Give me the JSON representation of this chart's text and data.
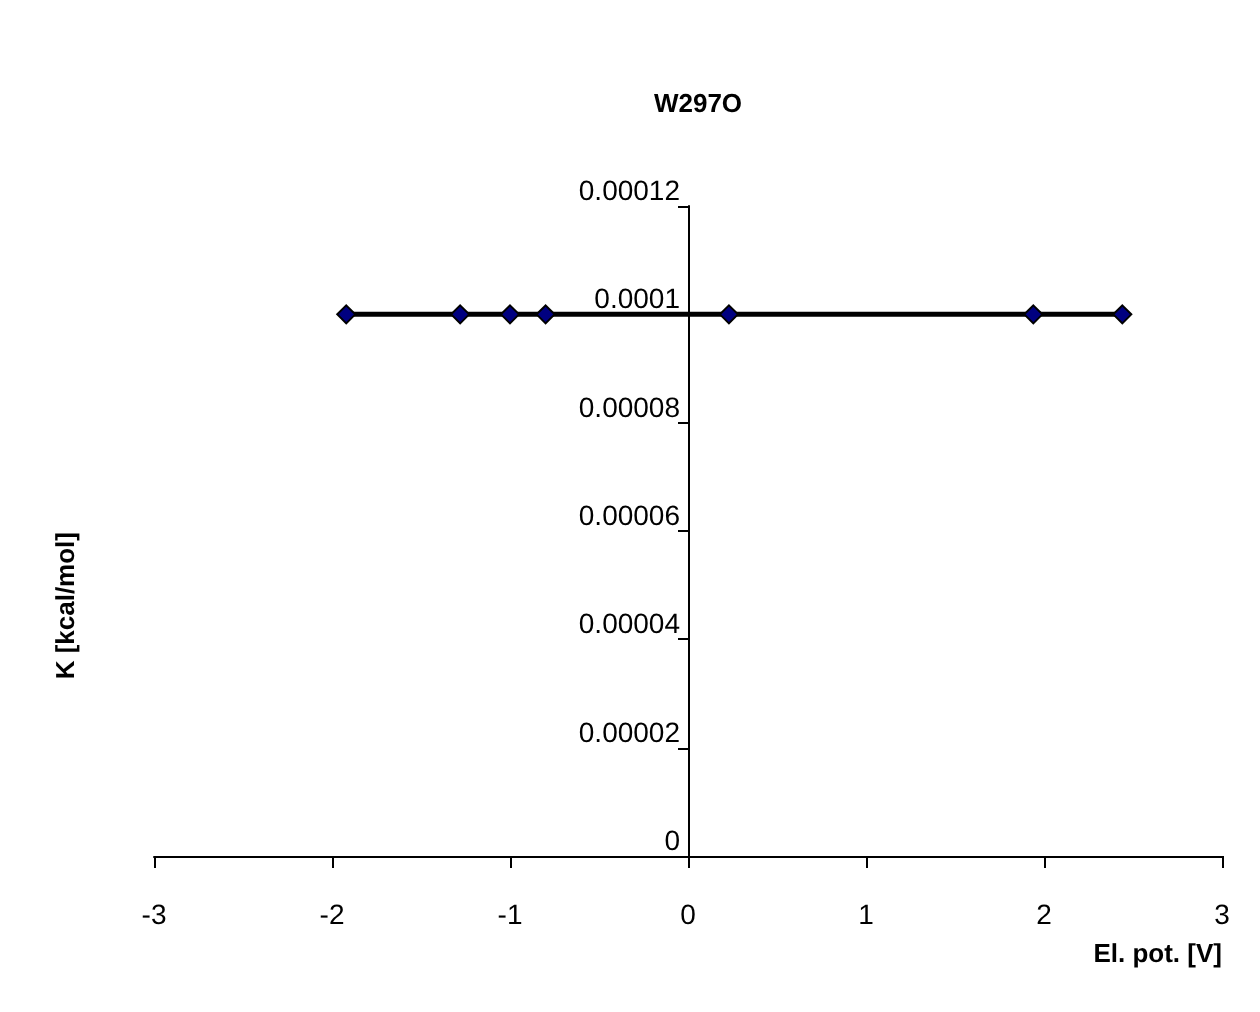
{
  "chart_data": {
    "type": "line",
    "title": "W297O",
    "xlabel": "El. pot. [V]",
    "ylabel": "K [kcal/mol]",
    "x": [
      -1.92,
      -1.28,
      -1.0,
      -0.8,
      0.23,
      1.94,
      2.44
    ],
    "series": [
      {
        "color": "#000080",
        "values": [
          0.0001,
          0.0001,
          0.0001,
          0.0001,
          0.0001,
          0.0001,
          0.0001
        ]
      }
    ],
    "xlim": [
      -3,
      3
    ],
    "xticks": [
      -3,
      -2,
      -1,
      0,
      1,
      2,
      3
    ],
    "ylim": [
      0,
      0.00012
    ],
    "yticks": [
      0,
      {
        "value": 2e-05,
        "label": "0.00002"
      },
      {
        "value": 4e-05,
        "label": "0.00004"
      },
      {
        "value": 6e-05,
        "label": "0.00006"
      },
      {
        "value": 8e-05,
        "label": "0.00008"
      },
      0.0001,
      0.00012
    ],
    "grid": false,
    "marker": "diamond",
    "line_style": "solid"
  }
}
